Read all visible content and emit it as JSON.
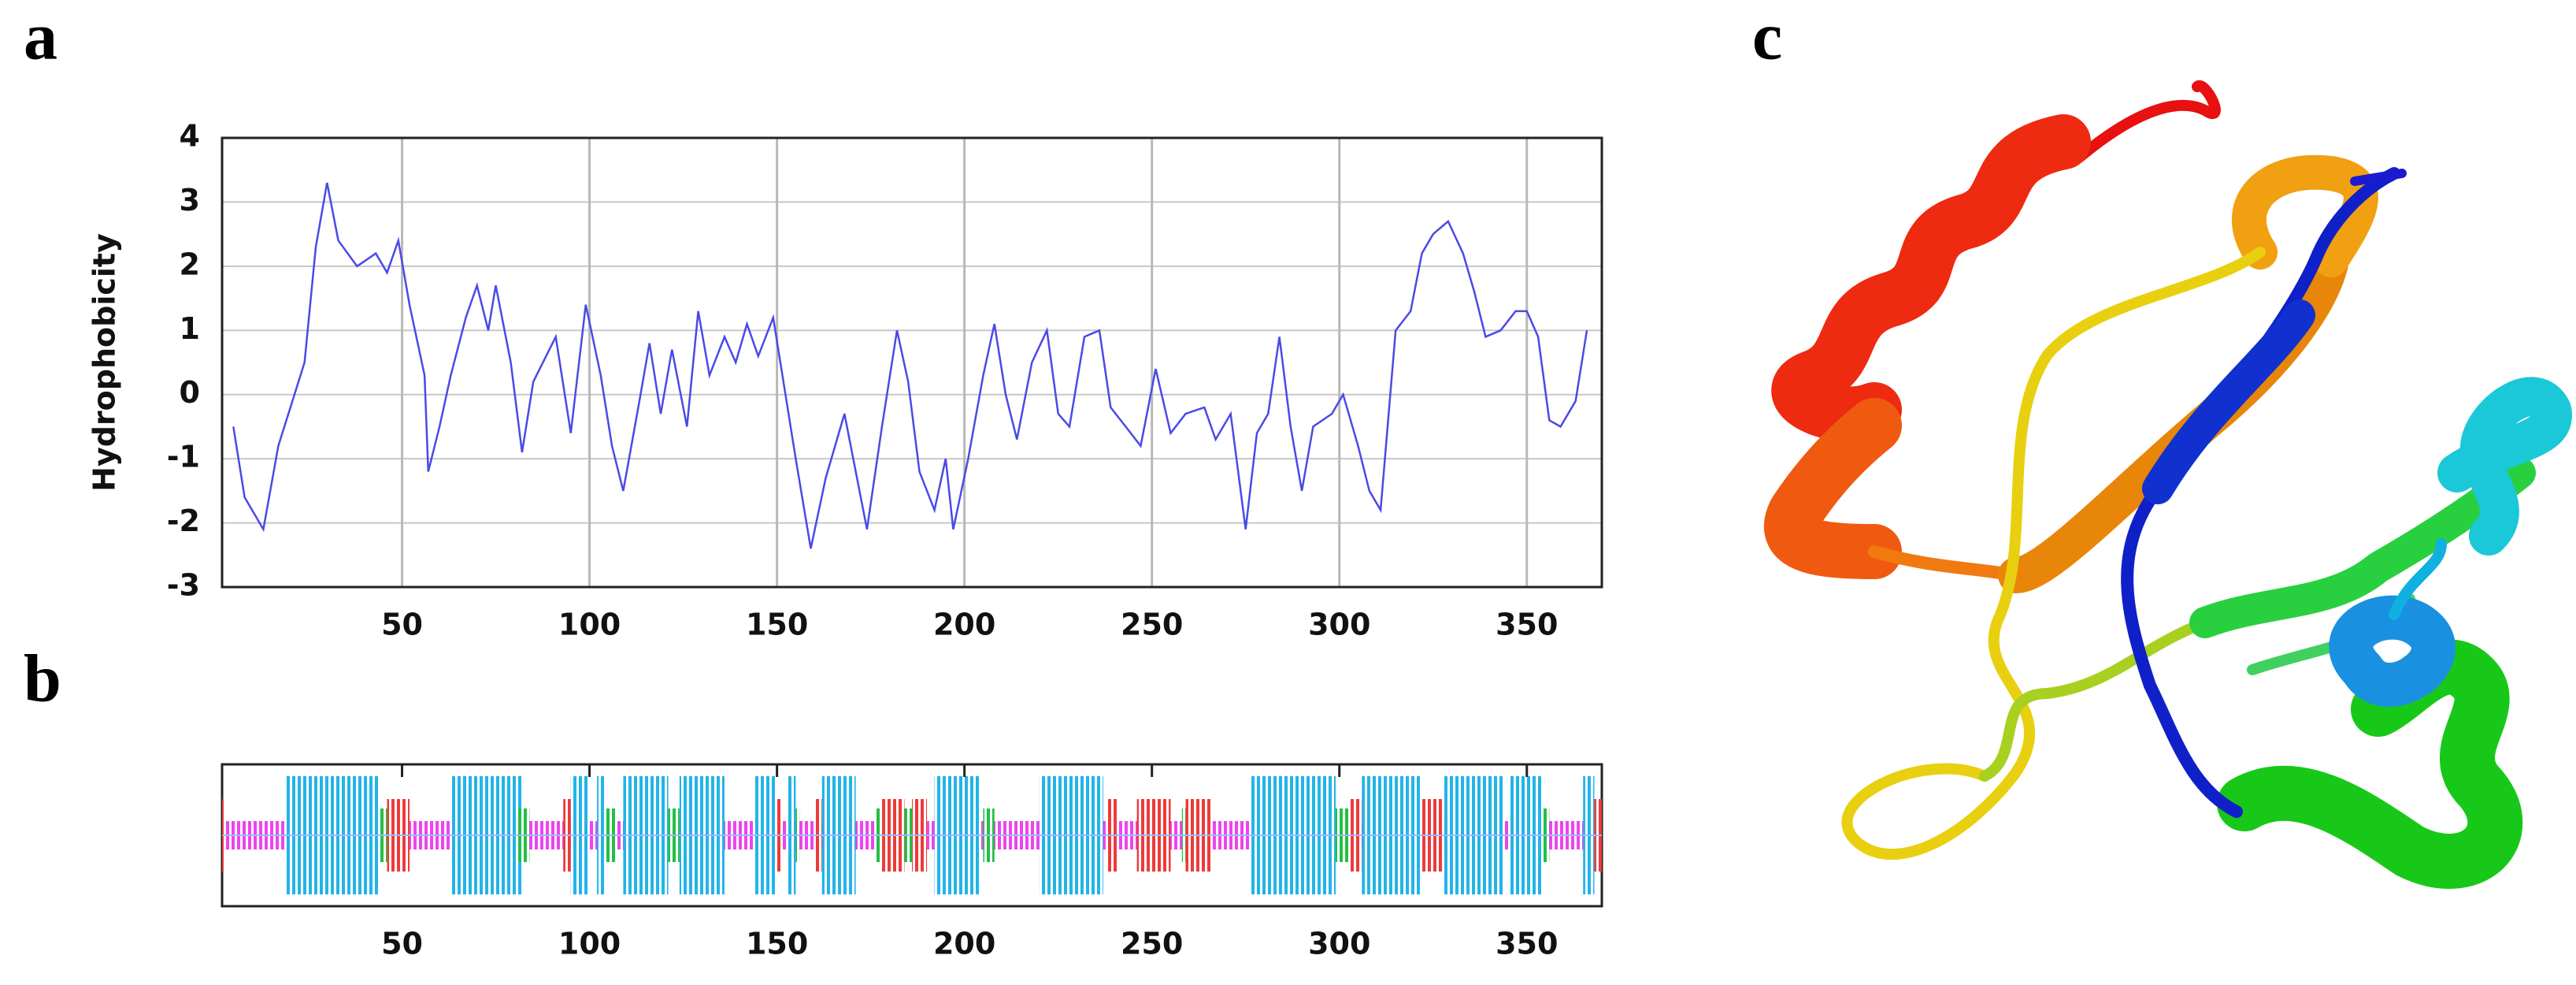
{
  "panels": [
    "a",
    "b",
    "c"
  ],
  "chart_data": [
    {
      "type": "line",
      "ylabel": "Hydrophobicity",
      "color": "#4a4ae8",
      "grid": true,
      "xlim": [
        2,
        370
      ],
      "ylim": [
        -3,
        4
      ],
      "xticks": [
        50,
        100,
        150,
        200,
        250,
        300,
        350
      ],
      "yticks": [
        -3,
        -2,
        -1,
        0,
        1,
        2,
        3,
        4
      ],
      "x": [
        5,
        8,
        13,
        17,
        24,
        27,
        30,
        33,
        38,
        43,
        46,
        49,
        52,
        56,
        57,
        60,
        63,
        67,
        70,
        73,
        75,
        79,
        82,
        85,
        91,
        95,
        99,
        103,
        106,
        109,
        113,
        116,
        119,
        122,
        126,
        129,
        132,
        136,
        139,
        142,
        145,
        149,
        152,
        155,
        159,
        163,
        168,
        171,
        174,
        178,
        182,
        185,
        188,
        192,
        195,
        197,
        201,
        205,
        208,
        211,
        214,
        218,
        222,
        225,
        228,
        232,
        236,
        239,
        243,
        247,
        251,
        255,
        259,
        264,
        267,
        271,
        275,
        278,
        281,
        284,
        287,
        290,
        293,
        298,
        301,
        305,
        308,
        311,
        315,
        319,
        322,
        325,
        329,
        333,
        336,
        339,
        343,
        347,
        350,
        353,
        356,
        359,
        363,
        366
      ],
      "values": [
        -0.5,
        -1.6,
        -2.1,
        -0.8,
        0.5,
        2.3,
        3.3,
        2.4,
        2.0,
        2.2,
        1.9,
        2.4,
        1.4,
        0.3,
        -1.2,
        -0.5,
        0.3,
        1.2,
        1.7,
        1.0,
        1.7,
        0.5,
        -0.9,
        0.2,
        0.9,
        -0.6,
        1.4,
        0.3,
        -0.8,
        -1.5,
        -0.2,
        0.8,
        -0.3,
        0.7,
        -0.5,
        1.3,
        0.3,
        0.9,
        0.5,
        1.1,
        0.6,
        1.2,
        0.1,
        -1.0,
        -2.4,
        -1.3,
        -0.3,
        -1.2,
        -2.1,
        -0.5,
        1.0,
        0.2,
        -1.2,
        -1.8,
        -1.0,
        -2.1,
        -1.0,
        0.3,
        1.1,
        0.0,
        -0.7,
        0.5,
        1.0,
        -0.3,
        -0.5,
        0.9,
        1.0,
        -0.2,
        -0.5,
        -0.8,
        0.4,
        -0.6,
        -0.3,
        -0.2,
        -0.7,
        -0.3,
        -2.1,
        -0.6,
        -0.3,
        0.9,
        -0.5,
        -1.5,
        -0.5,
        -0.3,
        0.0,
        -0.8,
        -1.5,
        -1.8,
        1.0,
        1.3,
        2.2,
        2.5,
        2.7,
        2.2,
        1.6,
        0.9,
        1.0,
        1.3,
        1.3,
        0.9,
        -0.4,
        -0.5,
        -0.1,
        1.0
      ]
    },
    {
      "type": "segments",
      "xlim": [
        2,
        370
      ],
      "xticks": [
        50,
        100,
        150,
        200,
        250,
        300,
        350
      ],
      "series": [
        {
          "color": "#ee44ee",
          "segments": [
            [
              2,
              370
            ]
          ]
        },
        {
          "color": "#22b4e8",
          "segments": [
            [
              19,
              44
            ],
            [
              63,
              82
            ],
            [
              95,
              100
            ],
            [
              102,
              104
            ],
            [
              109,
              121
            ],
            [
              124,
              136
            ],
            [
              144,
              150
            ],
            [
              153,
              155
            ],
            [
              162,
              171
            ],
            [
              192,
              204
            ],
            [
              220,
              237
            ],
            [
              276,
              299
            ],
            [
              306,
              322
            ],
            [
              328,
              344
            ],
            [
              345,
              354
            ],
            [
              365,
              368
            ]
          ]
        },
        {
          "color": "#ee3a3a",
          "segments": [
            [
              2,
              3
            ],
            [
              46,
              52
            ],
            [
              93,
              95
            ],
            [
              150,
              151
            ],
            [
              160,
              162
            ],
            [
              178,
              184
            ],
            [
              186,
              190
            ],
            [
              238,
              241
            ],
            [
              246,
              255
            ],
            [
              259,
              266
            ],
            [
              303,
              306
            ],
            [
              322,
              328
            ],
            [
              368,
              370
            ]
          ]
        },
        {
          "color": "#22c044",
          "segments": [
            [
              44,
              46
            ],
            [
              81,
              84
            ],
            [
              104,
              107
            ],
            [
              121,
              124
            ],
            [
              155,
              156
            ],
            [
              176,
              178
            ],
            [
              184,
              186
            ],
            [
              205,
              208
            ],
            [
              258,
              259
            ],
            [
              299,
              303
            ],
            [
              354,
              356
            ]
          ]
        }
      ]
    }
  ]
}
